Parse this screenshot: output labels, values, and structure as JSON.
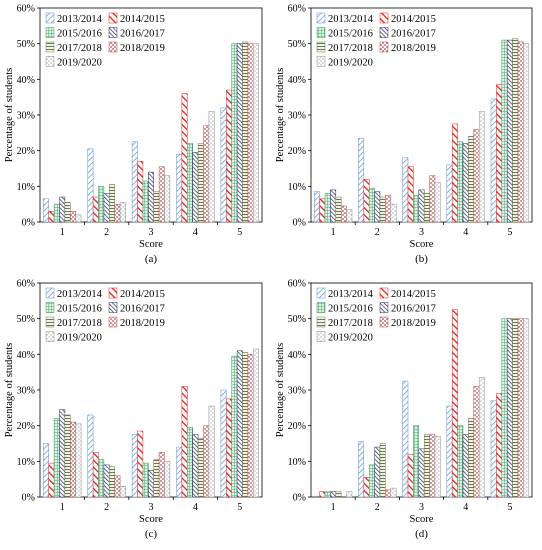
{
  "chart_data": [
    {
      "type": "bar",
      "panel_label": "(a)",
      "xlabel": "Score",
      "ylabel": "Percentage of students",
      "ylim": [
        0,
        60
      ],
      "yticks": [
        "0%",
        "10%",
        "20%",
        "30%",
        "40%",
        "50%",
        "60%"
      ],
      "categories": [
        "1",
        "2",
        "3",
        "4",
        "5"
      ],
      "series": [
        {
          "name": "2013/2014",
          "values": [
            6.5,
            20.5,
            22.5,
            19,
            32
          ]
        },
        {
          "name": "2014/2015",
          "values": [
            3,
            7,
            17,
            36,
            37
          ]
        },
        {
          "name": "2015/2016",
          "values": [
            5,
            10,
            11.5,
            22,
            50
          ]
        },
        {
          "name": "2016/2017",
          "values": [
            7,
            8,
            14,
            19.5,
            50
          ]
        },
        {
          "name": "2017/2018",
          "values": [
            5.5,
            10.5,
            8.5,
            22,
            50.5
          ]
        },
        {
          "name": "2018/2019",
          "values": [
            3,
            5,
            15.5,
            27,
            50
          ]
        },
        {
          "name": "2019/2020",
          "values": [
            2,
            5.5,
            13,
            31,
            50
          ]
        }
      ],
      "legend": "top-left",
      "grid": false
    },
    {
      "type": "bar",
      "panel_label": "(b)",
      "xlabel": "Score",
      "ylabel": "Percentage of students",
      "ylim": [
        0,
        60
      ],
      "yticks": [
        "0%",
        "10%",
        "20%",
        "30%",
        "40%",
        "50%",
        "60%"
      ],
      "categories": [
        "1",
        "2",
        "3",
        "4",
        "5"
      ],
      "series": [
        {
          "name": "2013/2014",
          "values": [
            8.5,
            23.5,
            18,
            16,
            34.5
          ]
        },
        {
          "name": "2014/2015",
          "values": [
            6.5,
            12,
            15.5,
            27.5,
            38.5
          ]
        },
        {
          "name": "2015/2016",
          "values": [
            8,
            9.5,
            7.5,
            22.5,
            51
          ]
        },
        {
          "name": "2016/2017",
          "values": [
            9,
            8.5,
            9,
            22,
            51
          ]
        },
        {
          "name": "2017/2018",
          "values": [
            7,
            7,
            8,
            24,
            51.5
          ]
        },
        {
          "name": "2018/2019",
          "values": [
            4.5,
            7.5,
            13,
            26,
            50.5
          ]
        },
        {
          "name": "2019/2020",
          "values": [
            3.5,
            5,
            11,
            31,
            50
          ]
        }
      ],
      "legend": "top-left",
      "grid": false
    },
    {
      "type": "bar",
      "panel_label": "(c)",
      "xlabel": "Score",
      "ylabel": "Percentage of students",
      "ylim": [
        0,
        60
      ],
      "yticks": [
        "0%",
        "10%",
        "20%",
        "30%",
        "40%",
        "50%",
        "60%"
      ],
      "categories": [
        "1",
        "2",
        "3",
        "4",
        "5"
      ],
      "series": [
        {
          "name": "2013/2014",
          "values": [
            15,
            23,
            17.5,
            14,
            30
          ]
        },
        {
          "name": "2014/2015",
          "values": [
            9.5,
            12.5,
            18.5,
            31,
            27.5
          ]
        },
        {
          "name": "2015/2016",
          "values": [
            22,
            10.5,
            9.5,
            19.5,
            39.5
          ]
        },
        {
          "name": "2016/2017",
          "values": [
            24.5,
            9,
            7.5,
            17.5,
            41
          ]
        },
        {
          "name": "2017/2018",
          "values": [
            23,
            8.5,
            10.5,
            16.5,
            40.5
          ]
        },
        {
          "name": "2018/2019",
          "values": [
            21,
            6,
            12.5,
            20,
            40
          ]
        },
        {
          "name": "2019/2020",
          "values": [
            20.5,
            3,
            10,
            25.5,
            41.5
          ]
        }
      ],
      "legend": "top-left",
      "grid": false
    },
    {
      "type": "bar",
      "panel_label": "(d)",
      "xlabel": "Score",
      "ylabel": "Percentage of students",
      "ylim": [
        0,
        60
      ],
      "yticks": [
        "0%",
        "10%",
        "20%",
        "30%",
        "40%",
        "50%",
        "60%"
      ],
      "categories": [
        "1",
        "2",
        "3",
        "4",
        "5"
      ],
      "series": [
        {
          "name": "2013/2014",
          "values": [
            0,
            15.5,
            32.5,
            25.5,
            27
          ]
        },
        {
          "name": "2014/2015",
          "values": [
            1.5,
            5.5,
            12,
            52.5,
            29
          ]
        },
        {
          "name": "2015/2016",
          "values": [
            1.5,
            9,
            20,
            20,
            50
          ]
        },
        {
          "name": "2016/2017",
          "values": [
            1.5,
            14,
            13.5,
            17.5,
            50
          ]
        },
        {
          "name": "2017/2018",
          "values": [
            1.5,
            15,
            17.5,
            22,
            50
          ]
        },
        {
          "name": "2018/2019",
          "values": [
            0,
            2,
            17.5,
            31,
            50
          ]
        },
        {
          "name": "2019/2020",
          "values": [
            1.5,
            2.5,
            17,
            33.5,
            50
          ]
        }
      ],
      "legend": "top-left",
      "grid": false
    }
  ],
  "series_colors": [
    "#5b8fd6",
    "#e02020",
    "#2e9a5a",
    "#2a2a5a",
    "#6b7a45",
    "#b84a4a",
    "#8a8a8a"
  ],
  "series_styles": [
    "diag-light",
    "diag-bold",
    "grid",
    "diag-dense",
    "horiz",
    "dots-red",
    "dots"
  ]
}
